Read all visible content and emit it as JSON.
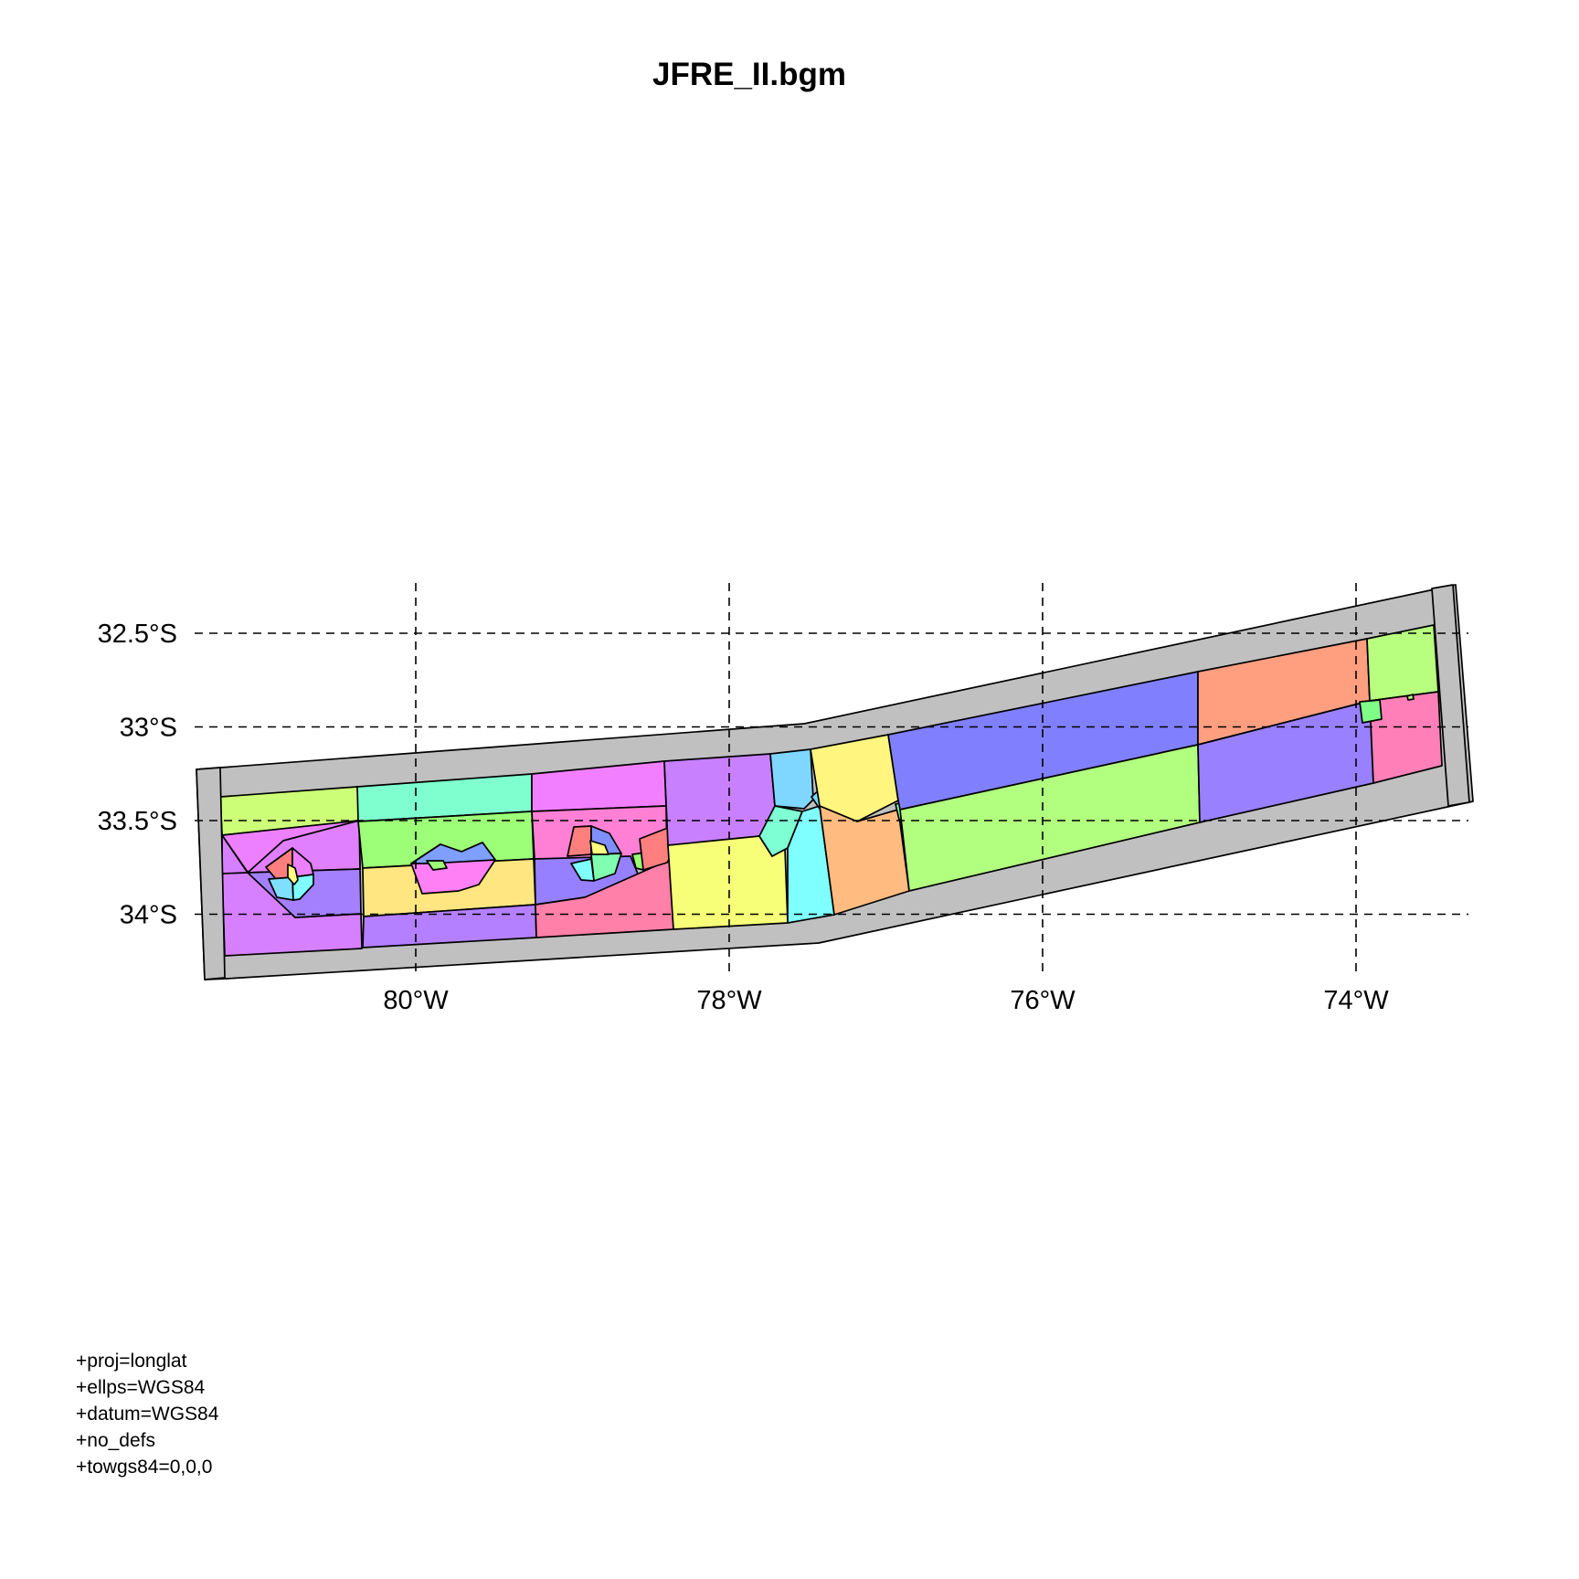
{
  "title": "JFRE_II.bgm",
  "map": {
    "background_color": "#ffffff",
    "boundary_color": "#c0c0c0",
    "grid": "dashed",
    "lon_ticks": [
      {
        "value": -80,
        "label": "80°W"
      },
      {
        "value": -78,
        "label": "78°W"
      },
      {
        "value": -76,
        "label": "76°W"
      },
      {
        "value": -74,
        "label": "74°W"
      }
    ],
    "lat_ticks": [
      {
        "value": -32.5,
        "label": "32.5°S"
      },
      {
        "value": -33.0,
        "label": "33°S"
      },
      {
        "value": -33.5,
        "label": "33.5°S"
      },
      {
        "value": -34.0,
        "label": "34°S"
      }
    ]
  },
  "projection_notes": [
    "+proj=longlat",
    "+ellps=WGS84",
    "+datum=WGS84",
    "+no_defs",
    "+towgs84=0,0,0"
  ]
}
